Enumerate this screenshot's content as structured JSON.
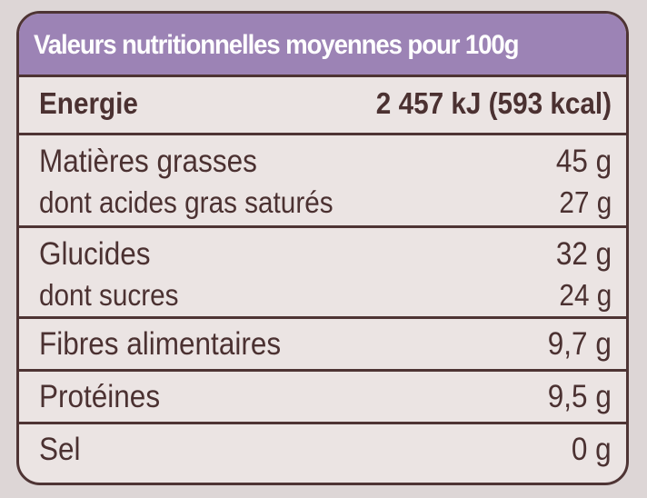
{
  "header": {
    "title": "Valeurs nutritionnelles moyennes pour 100g"
  },
  "rows": {
    "energy": {
      "label": "Energie",
      "value": "2 457 kJ (593 kcal)"
    },
    "fat": {
      "label": "Matières grasses",
      "value": "45 g"
    },
    "saturated": {
      "label": "dont acides gras saturés",
      "value": "27 g"
    },
    "carbs": {
      "label": "Glucides",
      "value": "32 g"
    },
    "sugars": {
      "label": "dont sucres",
      "value": "24 g"
    },
    "fibre": {
      "label": "Fibres alimentaires",
      "value": "9,7 g"
    },
    "protein": {
      "label": "Protéines",
      "value": "9,5 g"
    },
    "salt": {
      "label": "Sel",
      "value": "0 g"
    }
  },
  "colors": {
    "header_bg": "#9c83b5",
    "text": "#4b3131",
    "border": "#4e3434",
    "background": "#ebe4e3"
  }
}
